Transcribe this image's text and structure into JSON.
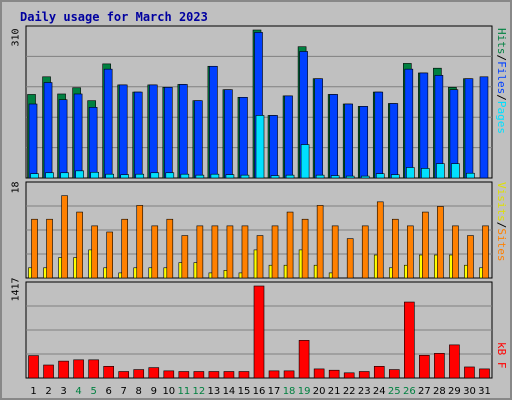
{
  "title": "Daily usage for March 2023",
  "colors": {
    "hits": "#008040",
    "files": "#0040ff",
    "pages": "#00e0ff",
    "visits": "#ffff00",
    "sites": "#ff8000",
    "kbf": "#ff0000",
    "weekend": "#008040",
    "title": "#0000a0"
  },
  "legend_top": {
    "pages": "Pages",
    "sep1": "/",
    "files": "Files",
    "sep2": "/",
    "hits": "Hits"
  },
  "legend_mid": {
    "sites": "Sites",
    "sep": "/",
    "visits": "Visits"
  },
  "legend_bot": {
    "kbf": "kB F"
  },
  "chart_data": [
    {
      "type": "bar",
      "panel": "hits-files-pages",
      "ymax_label": "310",
      "ylim": [
        0,
        310
      ],
      "categories": [
        "1",
        "2",
        "3",
        "4",
        "5",
        "6",
        "7",
        "8",
        "9",
        "10",
        "11",
        "12",
        "13",
        "14",
        "15",
        "16",
        "17",
        "18",
        "19",
        "20",
        "21",
        "22",
        "23",
        "24",
        "25",
        "26",
        "27",
        "28",
        "29",
        "30",
        "31"
      ],
      "weekend_days": [
        4,
        5,
        11,
        12,
        18,
        19,
        25,
        26
      ],
      "series": [
        {
          "name": "Hits",
          "values": [
            175,
            212,
            176,
            189,
            162,
            239,
            195,
            180,
            195,
            190,
            196,
            162,
            234,
            185,
            169,
            310,
            131,
            172,
            275,
            208,
            175,
            155,
            150,
            180,
            156,
            240,
            220,
            230,
            190,
            208,
            0
          ]
        },
        {
          "name": "Files",
          "values": [
            155,
            200,
            164,
            176,
            148,
            228,
            195,
            180,
            195,
            190,
            196,
            162,
            234,
            185,
            169,
            305,
            131,
            172,
            265,
            208,
            175,
            155,
            150,
            180,
            156,
            228,
            220,
            215,
            185,
            208,
            212
          ]
        },
        {
          "name": "Pages",
          "values": [
            9,
            11,
            11,
            15,
            12,
            8,
            7,
            8,
            11,
            11,
            8,
            6,
            8,
            7,
            6,
            131,
            5,
            6,
            70,
            6,
            5,
            4,
            4,
            9,
            7,
            22,
            20,
            30,
            30,
            10,
            0
          ]
        }
      ]
    },
    {
      "type": "bar",
      "panel": "visits-sites",
      "ymax_label": "18",
      "ylim": [
        0,
        18
      ],
      "categories": [
        "1",
        "2",
        "3",
        "4",
        "5",
        "6",
        "7",
        "8",
        "9",
        "10",
        "11",
        "12",
        "13",
        "14",
        "15",
        "16",
        "17",
        "18",
        "19",
        "20",
        "21",
        "22",
        "23",
        "24",
        "25",
        "26",
        "27",
        "28",
        "29",
        "30",
        "31"
      ],
      "series": [
        {
          "name": "Sites",
          "values": [
            11.5,
            11.5,
            16.1,
            12.9,
            10.2,
            9.0,
            11.5,
            14.2,
            10.2,
            11.5,
            8.3,
            10.2,
            10.2,
            10.2,
            10.2,
            8.3,
            10.2,
            12.9,
            11.5,
            14.2,
            10.2,
            7.7,
            10.2,
            14.9,
            11.5,
            10.2,
            12.9,
            14.0,
            10.2,
            8.3,
            10.2
          ]
        },
        {
          "name": "Visits",
          "values": [
            2.0,
            2.0,
            4.0,
            4.0,
            5.5,
            2.0,
            1.0,
            2.0,
            2.0,
            2.0,
            3.0,
            3.0,
            1.0,
            1.5,
            1.0,
            5.5,
            2.5,
            2.5,
            5.5,
            2.5,
            1.0,
            0,
            0,
            4.5,
            2.0,
            2.5,
            4.5,
            4.5,
            4.5,
            2.5,
            2.0
          ]
        }
      ]
    },
    {
      "type": "bar",
      "panel": "kbf",
      "ymax_label": "1417",
      "ylim": [
        0,
        1417
      ],
      "categories": [
        "1",
        "2",
        "3",
        "4",
        "5",
        "6",
        "7",
        "8",
        "9",
        "10",
        "11",
        "12",
        "13",
        "14",
        "15",
        "16",
        "17",
        "18",
        "19",
        "20",
        "21",
        "22",
        "23",
        "24",
        "25",
        "26",
        "27",
        "28",
        "29",
        "30",
        "31"
      ],
      "series": [
        {
          "name": "kB F",
          "values": [
            345,
            200,
            260,
            280,
            280,
            180,
            100,
            130,
            160,
            110,
            100,
            100,
            100,
            100,
            100,
            1417,
            110,
            110,
            580,
            140,
            120,
            80,
            100,
            180,
            130,
            1170,
            350,
            380,
            510,
            170,
            140
          ]
        }
      ]
    }
  ]
}
